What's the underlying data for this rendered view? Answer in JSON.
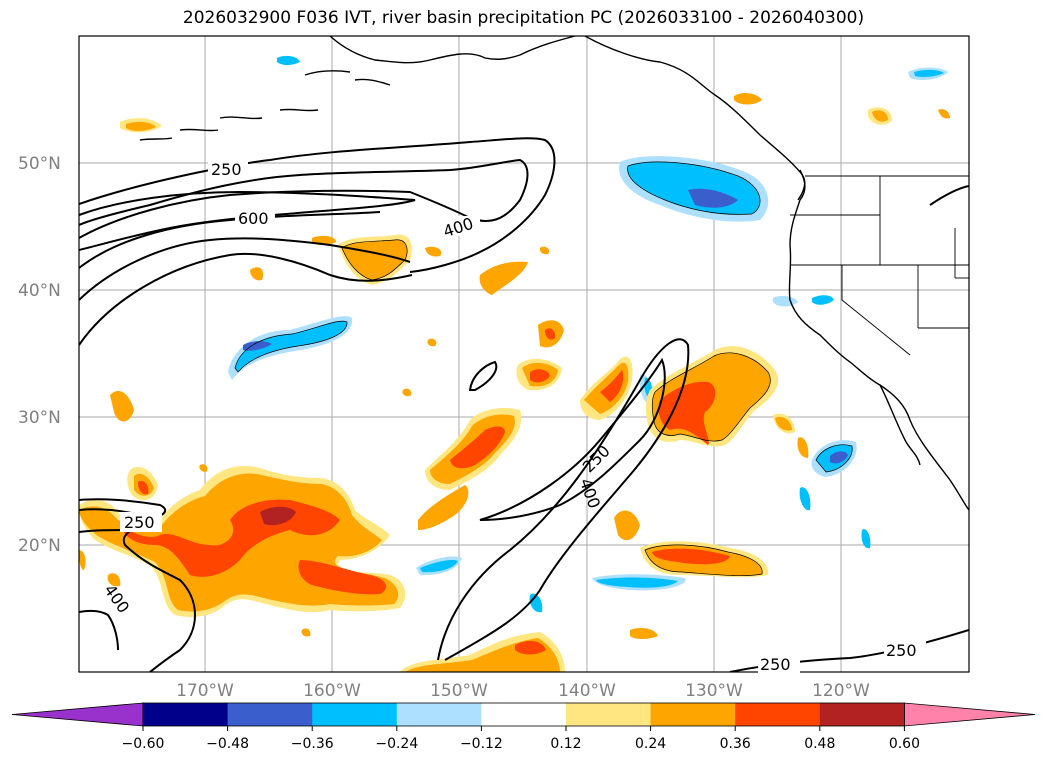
{
  "title": "2026032900 F036 IVT, river basin precipitation PC (2026033100 - 2026040300)",
  "latitude_labels": [
    "50°N",
    "40°N",
    "30°N",
    "20°N"
  ],
  "longitude_labels": [
    "170°W",
    "160°W",
    "150°W",
    "140°W",
    "130°W",
    "120°W"
  ],
  "ivt_contour_labels": [
    "250",
    "600",
    "400",
    "250",
    "400",
    "250",
    "400",
    "250",
    "250"
  ],
  "colorbar": {
    "ticks": [
      "−0.60",
      "−0.48",
      "−0.36",
      "−0.24",
      "−0.12",
      "0.12",
      "0.24",
      "0.36",
      "0.48",
      "0.60"
    ],
    "colors": [
      "#9932CC",
      "#00008B",
      "#3A5FCD",
      "#00BFFF",
      "#ADDFFF",
      "#FFFFFF",
      "#FFE680",
      "#FFA500",
      "#FF4500",
      "#B22222",
      "#FF82AB"
    ]
  },
  "chart_data": {
    "type": "contour-map",
    "title": "2026032900 F036 IVT, river basin precipitation PC (2026033100 - 2026040300)",
    "extent_lon": [
      -180,
      -110
    ],
    "extent_lat": [
      10,
      60
    ],
    "ivt_contour_levels": [
      250,
      400,
      600
    ],
    "pc_levels": [
      -0.6,
      -0.48,
      -0.36,
      -0.24,
      -0.12,
      0.12,
      0.24,
      0.36,
      0.48,
      0.6
    ]
  }
}
